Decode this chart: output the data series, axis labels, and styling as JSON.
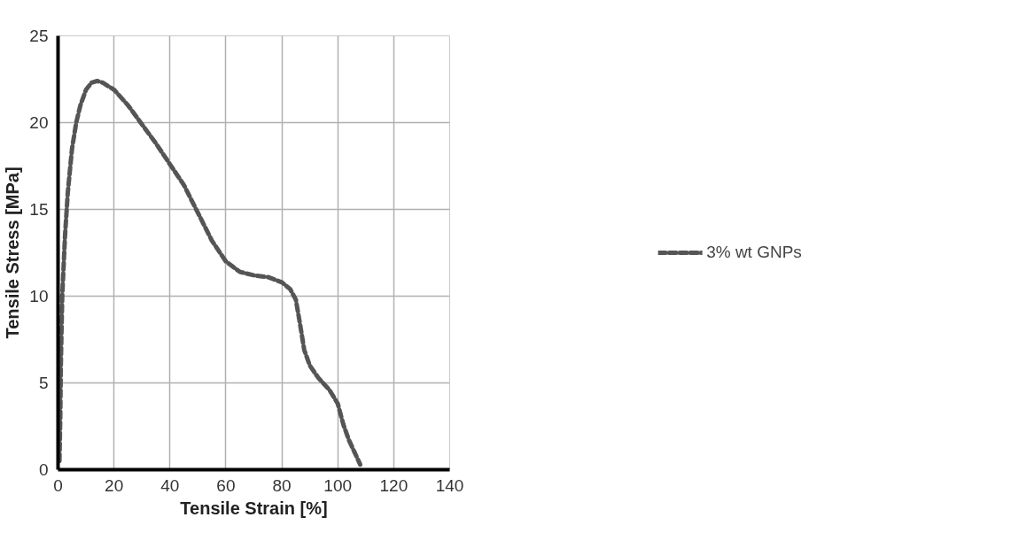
{
  "chart_data": {
    "type": "line",
    "xlabel": "Tensile Strain [%]",
    "ylabel": "Tensile Stress [MPa]",
    "xlim": [
      0,
      140
    ],
    "ylim": [
      0,
      25
    ],
    "xticks": [
      0,
      20,
      40,
      60,
      80,
      100,
      120,
      140
    ],
    "yticks": [
      0,
      5,
      10,
      15,
      20,
      25
    ],
    "grid": true,
    "legend": "right",
    "line_style": "dashed",
    "marker": "none",
    "series": [
      {
        "name": "3% wt GNPs",
        "color": "#555555",
        "x": [
          0.5,
          0.8,
          1.0,
          1.5,
          2.5,
          3.5,
          5,
          6.5,
          8,
          10,
          12,
          14,
          16,
          20,
          25,
          30,
          35,
          40,
          45,
          50,
          55,
          60,
          65,
          70,
          75,
          80,
          83,
          85,
          86.5,
          88,
          90,
          93,
          97,
          100,
          102,
          104,
          106,
          108
        ],
        "values": [
          0.5,
          3,
          6,
          10,
          13.5,
          16,
          18.5,
          20,
          21,
          21.9,
          22.3,
          22.4,
          22.3,
          21.9,
          21,
          19.9,
          18.8,
          17.6,
          16.4,
          14.8,
          13.2,
          12,
          11.4,
          11.2,
          11.1,
          10.8,
          10.4,
          9.8,
          8.4,
          6.9,
          6,
          5.3,
          4.6,
          3.8,
          2.6,
          1.7,
          1,
          0.3
        ]
      }
    ]
  }
}
